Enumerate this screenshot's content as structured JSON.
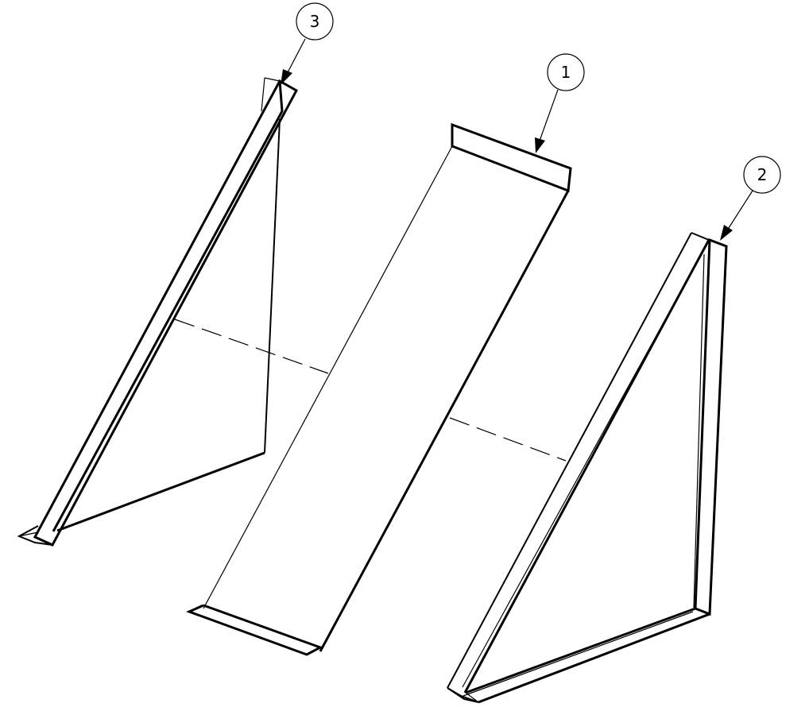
{
  "balloons": [
    {
      "id": "part-1",
      "label": "1"
    },
    {
      "id": "part-2",
      "label": "2"
    },
    {
      "id": "part-3",
      "label": "3"
    }
  ],
  "colors": {
    "line": "#000000",
    "background": "#ffffff"
  }
}
